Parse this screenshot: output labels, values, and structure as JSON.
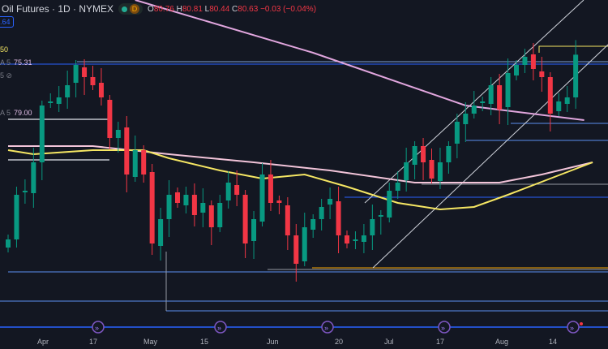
{
  "header": {
    "symbol": "Oil Futures · 1D · NYMEX",
    "badge": "D",
    "open_label": "O",
    "open": "80.76",
    "high_label": "H",
    "high": "80.81",
    "low_label": "L",
    "low": "80.44",
    "close_label": "C",
    "close": "80.63",
    "change": "−0.03 (−0.04%)"
  },
  "price_box": ".64",
  "legend": [
    {
      "label": "50",
      "value": ""
    },
    {
      "label": "A 5",
      "value": "75.31"
    },
    {
      "label": "5",
      "value": ""
    },
    {
      "label": "A 5",
      "value": "79.00"
    }
  ],
  "xaxis": [
    "Apr",
    "17",
    "May",
    "15",
    "Jun",
    "20",
    "Jul",
    "17",
    "Aug",
    "14"
  ],
  "colors": {
    "up": "#089981",
    "down": "#f23645",
    "ma_yellow": "#f5e663",
    "ma_pink": "#e1a6de",
    "line_blue": "#2962ff",
    "bg": "#131722"
  },
  "chart_data": {
    "type": "candlestick",
    "price_range": [
      64,
      84
    ],
    "closes": [
      69.25,
      72,
      72.25,
      74,
      77.5,
      77.75,
      78,
      78.75,
      80,
      79.25,
      78.75,
      78,
      75.5,
      76,
      73.25,
      74.75,
      73.25,
      69,
      70.5,
      72,
      71.5,
      72,
      70.75,
      71.5,
      70,
      71.5,
      72.75,
      72,
      69,
      70.5,
      73.25,
      71.5,
      71.5,
      69.5,
      67.75,
      70,
      70.5,
      71.25,
      71.75,
      69.5,
      69,
      69.25,
      69.5,
      70.5,
      70.75,
      72.25,
      72.75,
      74,
      75,
      74,
      73,
      74,
      75,
      76.5,
      77,
      77.5,
      77.75,
      78.75,
      77.25,
      79.5,
      80,
      80.5,
      79.75,
      79.25,
      77,
      77.75,
      78,
      80.63
    ],
    "ma_50": [
      [
        0,
        74.75
      ],
      [
        3,
        74.5
      ],
      [
        10,
        74.75
      ],
      [
        16,
        74.75
      ],
      [
        19,
        74.25
      ],
      [
        25,
        73.5
      ],
      [
        30,
        73
      ],
      [
        35,
        73.25
      ],
      [
        40,
        72.5
      ],
      [
        46,
        71.5
      ],
      [
        51,
        71.1
      ],
      [
        55,
        71.25
      ],
      [
        59,
        72
      ],
      [
        64,
        73
      ],
      [
        69,
        74
      ]
    ],
    "ma_200_lower": [
      [
        0,
        75
      ],
      [
        10,
        75
      ],
      [
        19,
        74.5
      ],
      [
        29,
        74
      ],
      [
        38,
        73.5
      ],
      [
        48,
        72.75
      ],
      [
        58,
        72.75
      ],
      [
        63,
        73.25
      ],
      [
        69,
        74
      ]
    ],
    "ma_200_upper": [
      [
        15,
        84
      ],
      [
        36,
        80.75
      ],
      [
        54,
        77.5
      ],
      [
        68,
        76.6
      ]
    ]
  }
}
